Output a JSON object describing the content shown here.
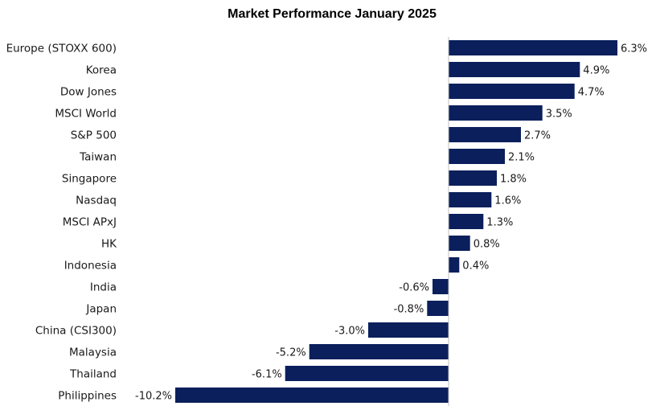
{
  "chart_data": {
    "type": "bar",
    "orientation": "horizontal",
    "title": "Market Performance January 2025",
    "categories": [
      "Europe (STOXX 600)",
      "Korea",
      "Dow Jones",
      "MSCI World",
      "S&P 500",
      "Taiwan",
      "Singapore",
      "Nasdaq",
      "MSCI APxJ",
      "HK",
      "Indonesia",
      "India",
      "Japan",
      "China (CSI300)",
      "Malaysia",
      "Thailand",
      "Philippines"
    ],
    "values": [
      6.3,
      4.9,
      4.7,
      3.5,
      2.7,
      2.1,
      1.8,
      1.6,
      1.3,
      0.8,
      0.4,
      -0.6,
      -0.8,
      -3.0,
      -5.2,
      -6.1,
      -10.2
    ],
    "value_labels": [
      "6.3%",
      "4.9%",
      "4.7%",
      "3.5%",
      "2.7%",
      "2.1%",
      "1.8%",
      "1.6%",
      "1.3%",
      "0.8%",
      "0.4%",
      "-0.6%",
      "-0.8%",
      "-3.0%",
      "-5.2%",
      "-6.1%",
      "-10.2%"
    ],
    "unit": "%",
    "xlim": [
      -10.2,
      6.3
    ],
    "grid": false,
    "legend": "none",
    "bar_color": "#0a1f5c",
    "axis_color": "#bfbfbf"
  }
}
